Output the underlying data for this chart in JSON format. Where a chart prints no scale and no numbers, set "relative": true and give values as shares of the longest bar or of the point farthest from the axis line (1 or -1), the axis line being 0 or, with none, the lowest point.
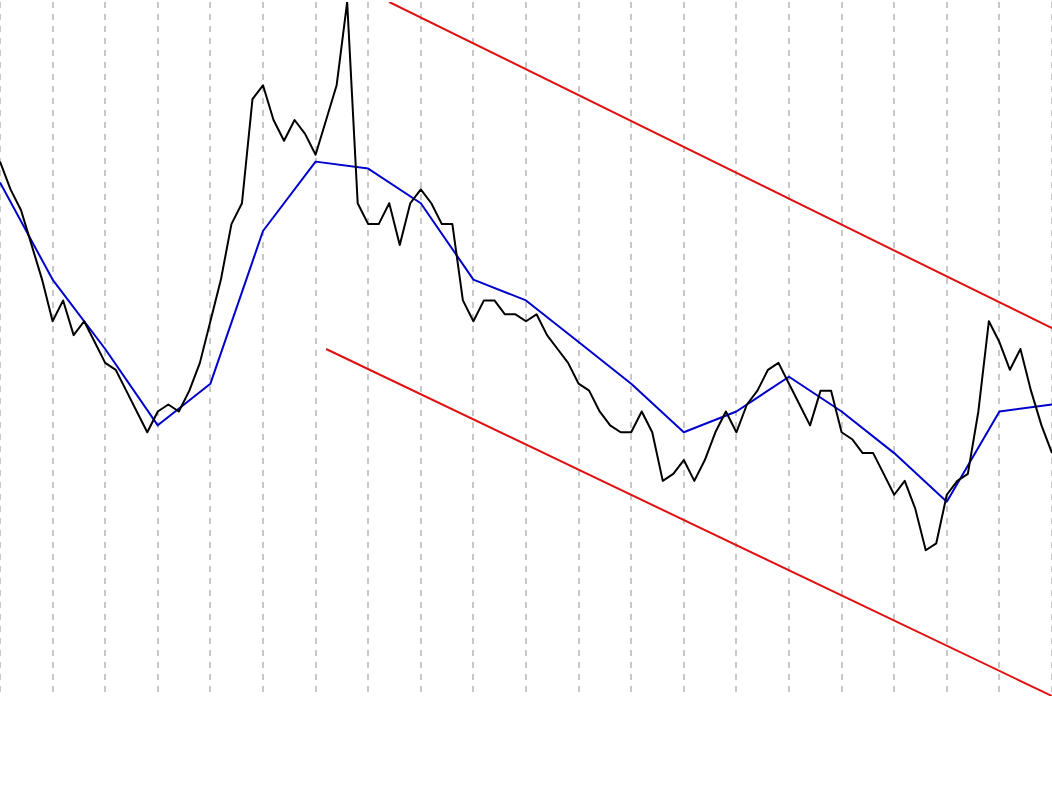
{
  "chart_data": {
    "type": "line",
    "relative": true,
    "grid": "x",
    "tick_labels": false,
    "legend": false,
    "marker": "none",
    "line_style": "solid",
    "categories": [
      null,
      null,
      null,
      null,
      null,
      null,
      null,
      null,
      null,
      null,
      null,
      null,
      null,
      null,
      null,
      null,
      null,
      null,
      null,
      null,
      null,
      null,
      null,
      null,
      null,
      null,
      null,
      null,
      null,
      null,
      null,
      null,
      null,
      null,
      null,
      null,
      null,
      null,
      null,
      null,
      null,
      null,
      null,
      null,
      null,
      null,
      null,
      null,
      null,
      null,
      null,
      null,
      null,
      null,
      null,
      null,
      null,
      null,
      null,
      null,
      null,
      null,
      null,
      null,
      null,
      null,
      null,
      null,
      null,
      null,
      null,
      null,
      null,
      null,
      null,
      null,
      null,
      null,
      null,
      null,
      null,
      null,
      null,
      null,
      null,
      null,
      null,
      null,
      null,
      null,
      null,
      null,
      null,
      null,
      null,
      null,
      null,
      null,
      null,
      null,
      null
    ],
    "series": [
      {
        "color": "#000000",
        "values": [
          0.77,
          0.73,
          0.7,
          0.65,
          0.6,
          0.54,
          0.57,
          0.52,
          0.54,
          0.51,
          0.48,
          0.47,
          0.44,
          0.41,
          0.38,
          0.41,
          0.42,
          0.41,
          0.44,
          0.48,
          0.54,
          0.6,
          0.68,
          0.71,
          0.86,
          0.88,
          0.83,
          0.8,
          0.83,
          0.81,
          0.78,
          0.83,
          0.88,
          1.0,
          0.71,
          0.68,
          0.68,
          0.71,
          0.65,
          0.71,
          0.73,
          0.71,
          0.68,
          0.68,
          0.57,
          0.54,
          0.57,
          0.57,
          0.55,
          0.55,
          0.54,
          0.55,
          0.52,
          0.5,
          0.48,
          0.45,
          0.44,
          0.41,
          0.39,
          0.38,
          0.38,
          0.41,
          0.38,
          0.31,
          0.32,
          0.34,
          0.31,
          0.34,
          0.38,
          0.41,
          0.38,
          0.42,
          0.44,
          0.47,
          0.48,
          0.45,
          0.42,
          0.39,
          0.44,
          0.44,
          0.38,
          0.37,
          0.35,
          0.35,
          0.32,
          0.29,
          0.31,
          0.27,
          0.21,
          0.22,
          0.29,
          0.31,
          0.32,
          0.41,
          0.54,
          0.51,
          0.47,
          0.5,
          0.44,
          0.39,
          0.35
        ]
      },
      {
        "color": "#0000cc",
        "values": [
          0.74,
          null,
          null,
          null,
          null,
          0.6,
          null,
          null,
          null,
          null,
          0.5,
          null,
          null,
          null,
          null,
          0.39,
          null,
          null,
          null,
          null,
          0.45,
          null,
          null,
          null,
          null,
          0.67,
          null,
          null,
          null,
          null,
          0.77,
          null,
          null,
          null,
          null,
          0.76,
          null,
          null,
          null,
          null,
          0.71,
          null,
          null,
          null,
          null,
          0.6,
          null,
          null,
          null,
          null,
          0.57,
          null,
          null,
          null,
          null,
          0.51,
          null,
          null,
          null,
          null,
          0.45,
          null,
          null,
          null,
          null,
          0.38,
          null,
          null,
          null,
          null,
          0.41,
          null,
          null,
          null,
          null,
          0.46,
          null,
          null,
          null,
          null,
          0.41,
          null,
          null,
          null,
          null,
          0.35,
          null,
          null,
          null,
          null,
          0.28,
          null,
          null,
          null,
          null,
          0.41,
          null,
          null,
          null,
          null,
          0.42
        ]
      },
      {
        "color": "#e01010",
        "values": [
          null,
          null,
          null,
          null,
          null,
          null,
          null,
          null,
          null,
          null,
          null,
          null,
          null,
          null,
          null,
          null,
          null,
          null,
          null,
          null,
          null,
          null,
          null,
          null,
          null,
          null,
          null,
          null,
          null,
          null,
          null,
          null,
          null,
          null,
          null,
          null,
          null,
          1.0,
          null,
          null,
          null,
          null,
          null,
          null,
          null,
          null,
          null,
          null,
          null,
          null,
          null,
          null,
          null,
          null,
          null,
          null,
          null,
          null,
          null,
          null,
          null,
          null,
          null,
          null,
          null,
          null,
          null,
          null,
          null,
          null,
          null,
          null,
          null,
          null,
          null,
          null,
          null,
          null,
          null,
          null,
          null,
          null,
          null,
          null,
          null,
          null,
          null,
          null,
          null,
          null,
          null,
          null,
          null,
          null,
          null,
          null,
          null,
          null,
          null,
          null,
          0.53
        ]
      },
      {
        "color": "#e01010",
        "values": [
          null,
          null,
          null,
          null,
          null,
          null,
          null,
          null,
          null,
          null,
          null,
          null,
          null,
          null,
          null,
          null,
          null,
          null,
          null,
          null,
          null,
          null,
          null,
          null,
          null,
          null,
          null,
          null,
          null,
          null,
          null,
          0.5,
          null,
          null,
          null,
          null,
          null,
          null,
          null,
          null,
          null,
          null,
          null,
          null,
          null,
          null,
          null,
          null,
          null,
          null,
          null,
          null,
          null,
          null,
          null,
          null,
          null,
          null,
          null,
          null,
          null,
          null,
          null,
          null,
          null,
          null,
          null,
          null,
          null,
          null,
          null,
          null,
          null,
          null,
          null,
          null,
          null,
          null,
          null,
          null,
          null,
          null,
          null,
          null,
          null,
          null,
          null,
          null,
          null,
          null,
          null,
          null,
          null,
          null,
          null,
          null,
          null,
          null,
          null,
          null,
          0
        ]
      }
    ]
  }
}
